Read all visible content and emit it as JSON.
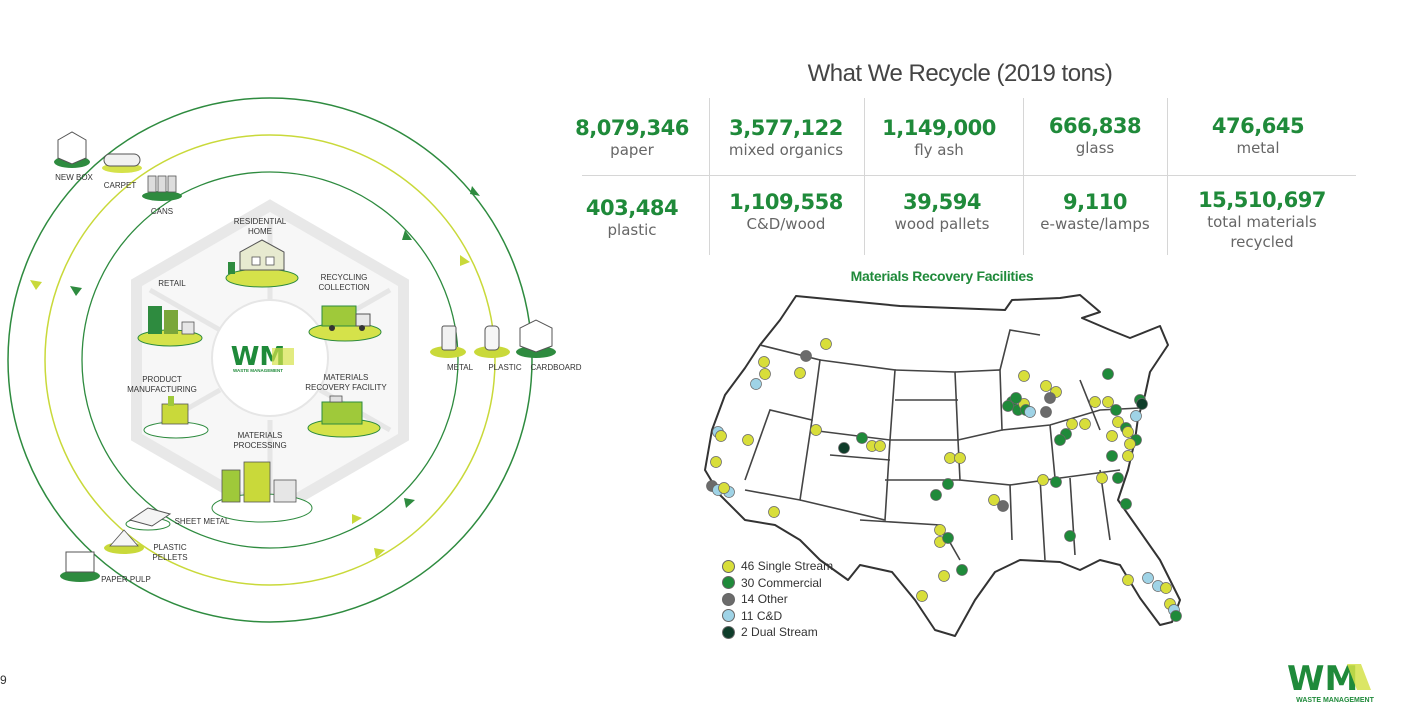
{
  "cycle": {
    "stages": [
      {
        "line1": "RESIDENTIAL",
        "line2": "HOME"
      },
      {
        "line1": "RECYCLING",
        "line2": "COLLECTION"
      },
      {
        "line1": "MATERIALS",
        "line2": "RECOVERY FACILITY"
      },
      {
        "line1": "MATERIALS",
        "line2": "PROCESSING"
      },
      {
        "line1": "PRODUCT",
        "line2": "MANUFACTURING"
      },
      {
        "line1": "RETAIL",
        "line2": ""
      }
    ],
    "outer_labels": {
      "new_box": "NEW BOX",
      "carpet": "CARPET",
      "cans": "CANS",
      "metal": "METAL",
      "plastic": "PLASTIC",
      "cardboard": "CARDBOARD",
      "sheet_metal": "SHEET METAL",
      "plastic_pellets_1": "PLASTIC",
      "plastic_pellets_2": "PELLETS",
      "paper_pulp": "PAPER PULP"
    },
    "center_logo_text": "WM",
    "center_logo_sub": "WASTE MANAGEMENT"
  },
  "stats": {
    "title": "What We Recycle (2019 tons)",
    "items": [
      {
        "value": "8,079,346",
        "label": "paper",
        "label2": ""
      },
      {
        "value": "3,577,122",
        "label": "mixed organics",
        "label2": ""
      },
      {
        "value": "1,149,000",
        "label": "fly ash",
        "label2": ""
      },
      {
        "value": "666,838",
        "label": "glass",
        "label2": ""
      },
      {
        "value": "476,645",
        "label": "metal",
        "label2": ""
      },
      {
        "value": "403,484",
        "label": "plastic",
        "label2": ""
      },
      {
        "value": "1,109,558",
        "label": "C&D/wood",
        "label2": ""
      },
      {
        "value": "39,594",
        "label": "wood pallets",
        "label2": ""
      },
      {
        "value": "9,110",
        "label": "e-waste/lamps",
        "label2": ""
      },
      {
        "value": "15,510,697",
        "label": "total materials",
        "label2": "recycled"
      }
    ]
  },
  "map": {
    "title": "Materials Recovery Facilities",
    "legend": [
      {
        "count": "46",
        "label": "Single Stream",
        "color": "#d8de3a"
      },
      {
        "count": "30",
        "label": "Commercial",
        "color": "#1f8a3a"
      },
      {
        "count": "14",
        "label": "Other",
        "color": "#6b6b6b"
      },
      {
        "count": "11",
        "label": "C&D",
        "color": "#9fd3e6"
      },
      {
        "count": "2",
        "label": "Dual Stream",
        "color": "#0f3d2a"
      }
    ]
  },
  "footer": {
    "page_number": "9",
    "logo_text": "WM",
    "logo_sub": "WASTE MANAGEMENT"
  }
}
